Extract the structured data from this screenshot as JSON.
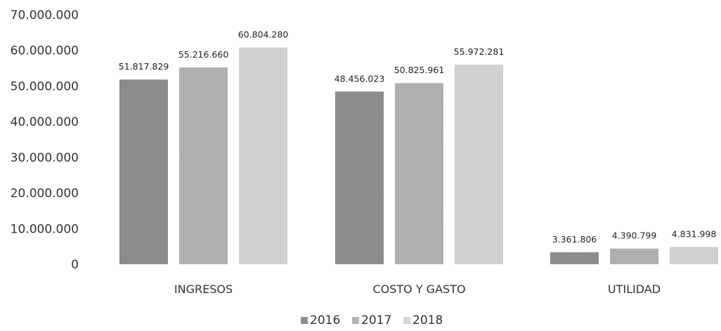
{
  "chart_data": {
    "type": "bar",
    "title": "",
    "xlabel": "",
    "ylabel": "",
    "ylim": [
      0,
      70000000
    ],
    "yticks": [
      0,
      10000000,
      20000000,
      30000000,
      40000000,
      50000000,
      60000000,
      70000000
    ],
    "ytick_labels": [
      "0",
      "10.000.000",
      "20.000.000",
      "30.000.000",
      "40.000.000",
      "50.000.000",
      "60.000.000",
      "70.000.000"
    ],
    "categories": [
      "INGRESOS",
      "COSTO Y GASTO",
      "UTILIDAD"
    ],
    "series": [
      {
        "name": "2016",
        "values": [
          51817829,
          48456023,
          3361806
        ],
        "labels": [
          "51.817.829",
          "48.456.023",
          "3.361.806"
        ],
        "color": "#8f8f8f"
      },
      {
        "name": "2017",
        "values": [
          55216660,
          50825961,
          4390799
        ],
        "labels": [
          "55.216.660",
          "50.825.961",
          "4.390.799"
        ],
        "color": "#b4b4b4"
      },
      {
        "name": "2018",
        "values": [
          60804280,
          55972281,
          4831998
        ],
        "labels": [
          "60.804.280",
          "55.972.281",
          "4.831.998"
        ],
        "color": "#d6d6d6"
      }
    ],
    "grid": false,
    "legend_position": "bottom-center"
  }
}
